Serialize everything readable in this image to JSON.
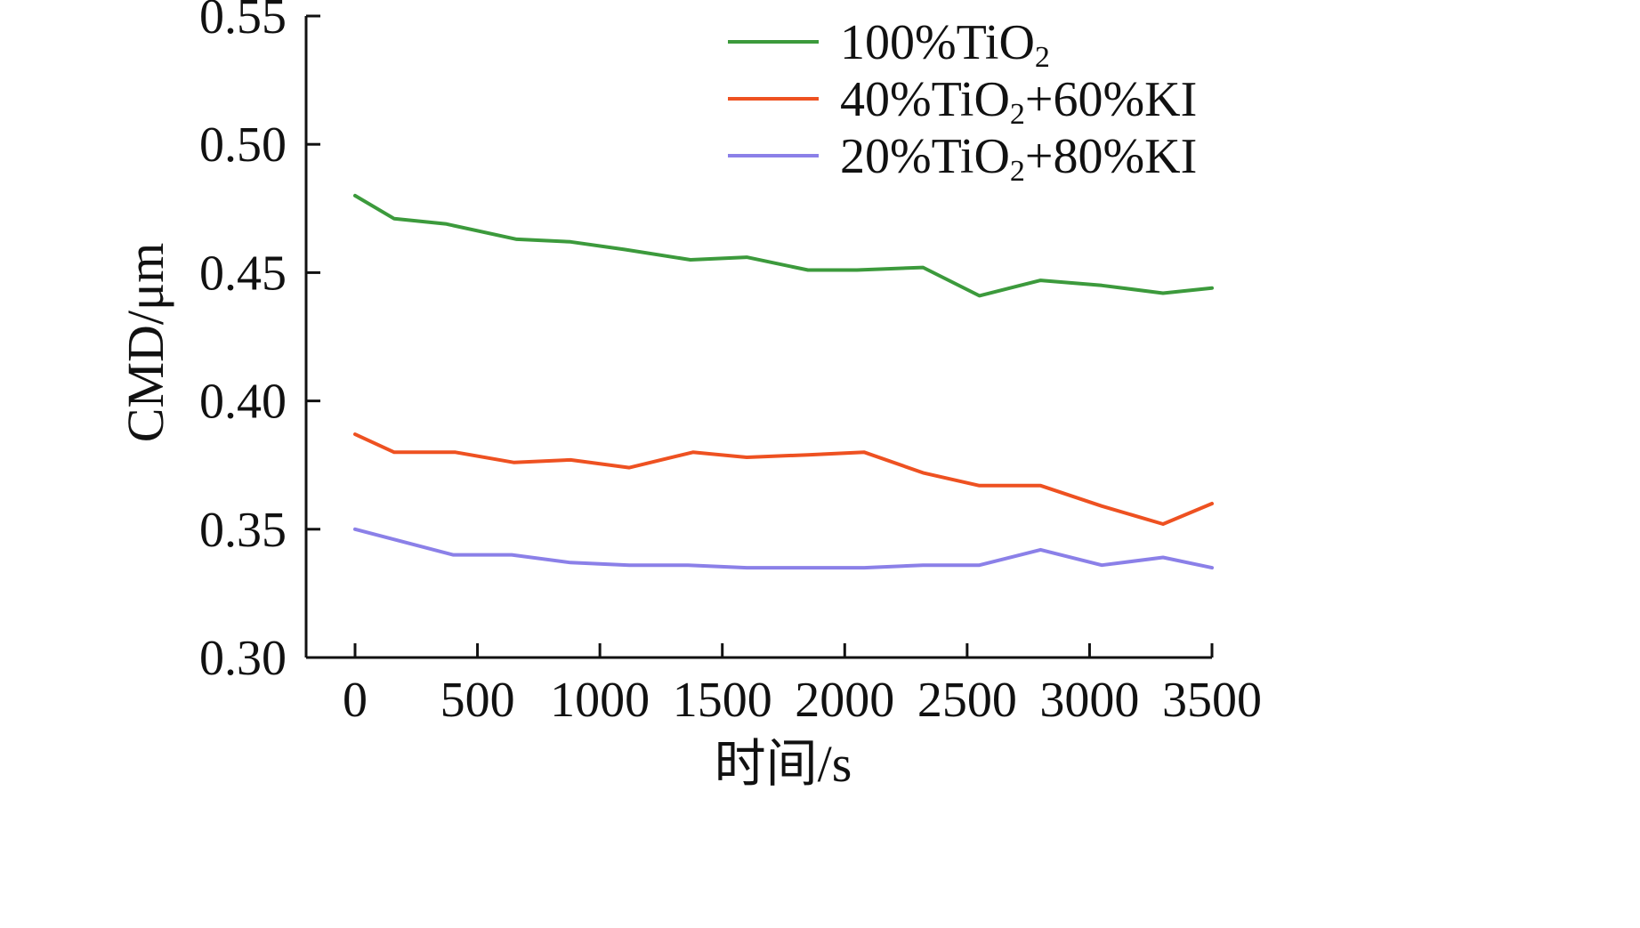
{
  "chart_data": {
    "type": "line",
    "xlabel": "时间/s",
    "ylabel": "CMD/μm",
    "xlim": [
      -200,
      3500
    ],
    "ylim": [
      0.3,
      0.55
    ],
    "x_ticks": [
      0,
      500,
      1000,
      1500,
      2000,
      2500,
      3000,
      3500
    ],
    "x_tick_labels": [
      "0",
      "500",
      "1000",
      "1500",
      "2000",
      "2500",
      "3000",
      "3500"
    ],
    "y_ticks": [
      0.3,
      0.35,
      0.4,
      0.45,
      0.5,
      0.55
    ],
    "y_tick_labels": [
      "0.30",
      "0.35",
      "0.40",
      "0.45",
      "0.50",
      "0.55"
    ],
    "grid": false,
    "legend_position": "top-right",
    "series": [
      {
        "name": "100%TiO2",
        "label_main": "100%TiO",
        "label_sub": "2",
        "label_tail": "",
        "color": "#3c9a3c",
        "x": [
          0,
          160,
          370,
          660,
          880,
          1100,
          1370,
          1600,
          1850,
          2050,
          2320,
          2550,
          2800,
          3050,
          3300,
          3500
        ],
        "y": [
          0.48,
          0.471,
          0.469,
          0.463,
          0.462,
          0.459,
          0.455,
          0.456,
          0.451,
          0.451,
          0.452,
          0.441,
          0.447,
          0.445,
          0.442,
          0.444
        ]
      },
      {
        "name": "40%TiO2+60%KI",
        "label_main": "40%TiO",
        "label_sub": "2",
        "label_tail": "+60%KI",
        "color": "#ee5121",
        "x": [
          0,
          160,
          410,
          650,
          880,
          1120,
          1380,
          1600,
          1850,
          2080,
          2320,
          2550,
          2800,
          3050,
          3300,
          3500
        ],
        "y": [
          0.387,
          0.38,
          0.38,
          0.376,
          0.377,
          0.374,
          0.38,
          0.378,
          0.379,
          0.38,
          0.372,
          0.367,
          0.367,
          0.359,
          0.352,
          0.36
        ]
      },
      {
        "name": "20%TiO2+80%KI",
        "label_main": "20%TiO",
        "label_sub": "2",
        "label_tail": "+80%KI",
        "color": "#8b80e8",
        "x": [
          0,
          200,
          400,
          640,
          880,
          1120,
          1360,
          1600,
          1850,
          2080,
          2320,
          2550,
          2800,
          3050,
          3300,
          3500
        ],
        "y": [
          0.35,
          0.345,
          0.34,
          0.34,
          0.337,
          0.336,
          0.336,
          0.335,
          0.335,
          0.335,
          0.336,
          0.336,
          0.342,
          0.336,
          0.339,
          0.335
        ]
      }
    ]
  }
}
